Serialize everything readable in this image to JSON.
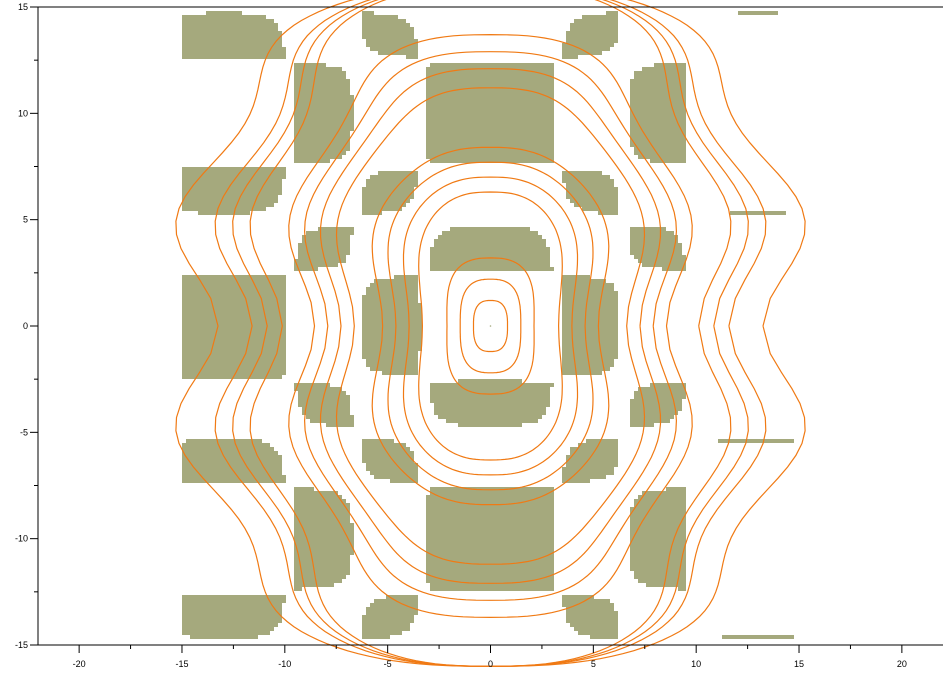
{
  "colors": {
    "region_fill": "#a5a97d",
    "contour_stroke": "#f07a14",
    "background": "#ffffff",
    "axis": "#000000"
  },
  "chart_data": {
    "type": "contour",
    "title": "",
    "xlabel": "",
    "ylabel": "",
    "xlim": [
      -22,
      22
    ],
    "ylim": [
      -15,
      15
    ],
    "x_major_ticks": [
      -20,
      -15,
      -10,
      -5,
      0,
      5,
      10,
      15,
      20
    ],
    "x_minor_ticks": [
      -17.5,
      -12.5,
      -7.5,
      -2.5,
      2.5,
      7.5,
      12.5,
      17.5
    ],
    "y_major_ticks": [
      -15,
      -10,
      -5,
      0,
      5,
      10,
      15
    ],
    "y_minor_ticks": [
      -12.5,
      -7.5,
      -2.5,
      2.5,
      7.5,
      12.5
    ],
    "x_tick_labels": [
      "-20",
      "-15",
      "-10",
      "-5",
      "0",
      "5",
      "10",
      "15",
      "20"
    ],
    "y_tick_labels": [
      "-15",
      "-10",
      "-5",
      "0",
      "5",
      "10",
      "15"
    ],
    "field_region": {
      "x_extent": [
        -15,
        15
      ],
      "y_extent": [
        -15,
        15
      ],
      "shaded_where": "sin(x/2)*sin(y/2) > 0 (outside the separatrix cells)",
      "separatrix_points": [
        [
          0,
          -15
        ],
        [
          0,
          -10
        ],
        [
          0,
          -5
        ],
        [
          0,
          0
        ],
        [
          0,
          5
        ],
        [
          0,
          10
        ],
        [
          0,
          15
        ]
      ]
    },
    "contour_levels": [
      {
        "name": "inner",
        "x_semi": 0.9,
        "y_semi": 1.2
      },
      {
        "name": "inner",
        "x_semi": 1.6,
        "y_semi": 2.2
      },
      {
        "name": "inner",
        "x_semi": 2.3,
        "y_semi": 3.2
      },
      {
        "name": "mid",
        "x_semi": 3.6,
        "y_semi": 6.3
      },
      {
        "name": "mid",
        "x_semi": 4.3,
        "y_semi": 7.0
      },
      {
        "name": "mid",
        "x_semi": 5.0,
        "y_semi": 7.7
      },
      {
        "name": "mid",
        "x_semi": 5.7,
        "y_semi": 8.4
      },
      {
        "name": "outer",
        "x_semi": 7.2,
        "y_semi": 11.2
      },
      {
        "name": "outer",
        "x_semi": 7.9,
        "y_semi": 12.1
      },
      {
        "name": "outer",
        "x_semi": 8.6,
        "y_semi": 12.9
      },
      {
        "name": "outer",
        "x_semi": 9.3,
        "y_semi": 13.7
      },
      {
        "name": "edge",
        "x_semi": 11.0,
        "y_semi": 16.0
      },
      {
        "name": "edge",
        "x_semi": 11.8,
        "y_semi": 16.0
      },
      {
        "name": "edge",
        "x_semi": 12.6,
        "y_semi": 16.0
      },
      {
        "name": "edge",
        "x_semi": 14.4,
        "y_semi": 16.0
      }
    ],
    "grid": false,
    "legend": "none"
  }
}
